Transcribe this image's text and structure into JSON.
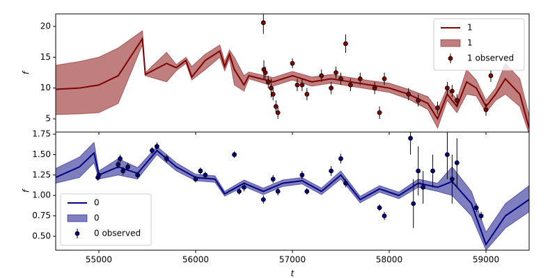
{
  "chart_data": [
    {
      "type": "line",
      "ylabel": "f",
      "legend": "upper right",
      "xlim": [
        54554,
        59446
      ],
      "ylim": [
        2.86,
        22.03
      ],
      "yticks": [
        5,
        10,
        15,
        20
      ],
      "x": [
        54554,
        54800,
        55000,
        55200,
        55450,
        55480,
        55700,
        55800,
        55900,
        55960,
        56100,
        56250,
        56300,
        56350,
        56400,
        56500,
        56550,
        56800,
        57000,
        57200,
        57400,
        57600,
        57800,
        58000,
        58200,
        58400,
        58500,
        58600,
        58700,
        58800,
        58900,
        59000,
        59100,
        59200,
        59350,
        59446
      ],
      "series": [
        {
          "name": "1",
          "kind": "line",
          "color": "#800000",
          "values": [
            9.8,
            10.0,
            10.5,
            12.0,
            18.0,
            12.2,
            14.0,
            13.3,
            14.5,
            11.8,
            14.5,
            16.0,
            13.5,
            15.5,
            13.0,
            10.5,
            12.0,
            11.0,
            12.0,
            11.0,
            11.5,
            11.0,
            10.5,
            10.0,
            9.0,
            7.5,
            5.0,
            9.0,
            7.0,
            11.0,
            10.0,
            7.0,
            9.0,
            11.5,
            9.0,
            3.5
          ]
        },
        {
          "name": "1",
          "kind": "band",
          "color": "#800000",
          "lower": [
            5.7,
            5.8,
            6.0,
            7.5,
            17.0,
            12.0,
            11.0,
            12.8,
            14.0,
            11.3,
            13.0,
            15.0,
            12.8,
            14.8,
            10.5,
            9.5,
            11.5,
            10.3,
            11.3,
            10.3,
            10.8,
            10.3,
            9.8,
            9.3,
            8.2,
            6.5,
            3.5,
            8.0,
            6.0,
            9.0,
            8.7,
            6.0,
            8.0,
            9.0,
            7.0,
            2.5
          ],
          "upper": [
            13.7,
            14.3,
            15.0,
            16.5,
            19.3,
            12.5,
            15.8,
            13.8,
            15.0,
            13.5,
            15.5,
            17.0,
            14.3,
            16.2,
            15.0,
            12.0,
            12.6,
            11.7,
            12.7,
            11.8,
            12.2,
            11.7,
            11.2,
            10.8,
            9.8,
            8.6,
            6.5,
            10.0,
            8.2,
            13.0,
            11.3,
            8.0,
            10.0,
            14.0,
            11.5,
            5.5
          ]
        },
        {
          "name": "1 observed",
          "kind": "points",
          "color": "#800000",
          "x": [
            56700,
            56705,
            56720,
            56750,
            56780,
            56800,
            56830,
            56850,
            57000,
            57050,
            57100,
            57150,
            57300,
            57400,
            57450,
            57500,
            57550,
            57600,
            57700,
            57850,
            57900,
            57950,
            58200,
            58300,
            58500,
            58600,
            58650,
            58700,
            59000,
            59050
          ],
          "values": [
            20.6,
            13.0,
            12.5,
            11.0,
            10.0,
            9.0,
            7.0,
            6.0,
            14.0,
            10.5,
            10.5,
            9.0,
            12.0,
            10.0,
            12.5,
            11.5,
            17.2,
            10.5,
            11.5,
            10.0,
            6.0,
            11.5,
            9.0,
            8.0,
            6.8,
            10.0,
            9.5,
            8.0,
            6.5,
            12.0
          ],
          "errors": [
            1.8,
            1.5,
            1.0,
            1.0,
            1.5,
            1.0,
            1.0,
            1.0,
            0.8,
            1.0,
            1.0,
            1.0,
            1.0,
            1.0,
            1.0,
            1.0,
            1.5,
            1.0,
            1.0,
            1.0,
            1.0,
            1.0,
            1.0,
            1.0,
            1.0,
            1.0,
            1.0,
            1.0,
            1.0,
            1.0
          ]
        }
      ]
    },
    {
      "type": "line",
      "ylabel": "f",
      "xlabel": "t",
      "legend": "lower left",
      "xlim": [
        54554,
        59446
      ],
      "ylim": [
        0.33,
        1.776
      ],
      "xticks": [
        55000,
        56000,
        57000,
        58000,
        59000
      ],
      "yticks": [
        {
          "value": 0.5,
          "label": "0.50"
        },
        0.75,
        {
          "value": 1.0,
          "label": "1.00"
        },
        1.25,
        {
          "value": 1.5,
          "label": "1.50"
        },
        1.75
      ],
      "x": [
        54554,
        54800,
        54950,
        55000,
        55200,
        55400,
        55600,
        55800,
        56000,
        56200,
        56300,
        56500,
        56700,
        56900,
        57100,
        57300,
        57500,
        57700,
        57900,
        58100,
        58300,
        58500,
        58650,
        58850,
        59000,
        59200,
        59446
      ],
      "series": [
        {
          "name": "0",
          "kind": "line",
          "color": "#000080",
          "values": [
            1.22,
            1.35,
            1.52,
            1.25,
            1.35,
            1.27,
            1.55,
            1.35,
            1.22,
            1.2,
            1.02,
            1.15,
            1.05,
            1.15,
            1.18,
            1.05,
            1.25,
            0.95,
            1.08,
            1.0,
            1.15,
            1.1,
            1.17,
            0.9,
            0.4,
            0.75,
            0.95
          ]
        },
        {
          "name": "0",
          "kind": "band",
          "color": "#000080",
          "lower": [
            1.15,
            1.22,
            1.4,
            1.2,
            1.25,
            1.2,
            1.5,
            1.3,
            1.18,
            1.16,
            0.99,
            1.11,
            1.01,
            1.11,
            1.14,
            1.01,
            1.2,
            0.91,
            1.04,
            0.96,
            1.1,
            1.05,
            1.0,
            0.75,
            0.33,
            0.6,
            0.8
          ],
          "upper": [
            1.33,
            1.47,
            1.65,
            1.3,
            1.45,
            1.34,
            1.6,
            1.4,
            1.26,
            1.24,
            1.05,
            1.19,
            1.09,
            1.19,
            1.22,
            1.09,
            1.3,
            0.99,
            1.12,
            1.04,
            1.2,
            1.15,
            1.35,
            1.05,
            0.55,
            0.9,
            1.12
          ]
        },
        {
          "name": "0 observed",
          "kind": "points",
          "color": "#000080",
          "x": [
            54990,
            55000,
            55200,
            55220,
            55250,
            55300,
            55400,
            55550,
            55600,
            55700,
            56000,
            56050,
            56100,
            56400,
            56450,
            56500,
            56700,
            56800,
            56850,
            57100,
            57150,
            57400,
            57500,
            57550,
            57900,
            57950,
            58220,
            58250,
            58300,
            58350,
            58450,
            58600,
            58650,
            58700,
            58900,
            58950
          ],
          "values": [
            1.22,
            1.25,
            1.38,
            1.45,
            1.3,
            1.35,
            1.25,
            1.55,
            1.6,
            1.45,
            1.2,
            1.3,
            1.25,
            1.5,
            1.05,
            1.1,
            0.95,
            1.2,
            1.05,
            1.25,
            1.05,
            1.3,
            1.45,
            1.15,
            0.85,
            0.75,
            1.7,
            0.9,
            1.3,
            1.1,
            1.3,
            1.5,
            1.2,
            1.4,
            0.85,
            0.75
          ],
          "errors": [
            0.04,
            0.04,
            0.05,
            0.05,
            0.05,
            0.05,
            0.04,
            0.04,
            0.05,
            0.05,
            0.04,
            0.04,
            0.04,
            0.04,
            0.04,
            0.05,
            0.05,
            0.05,
            0.05,
            0.05,
            0.04,
            0.06,
            0.06,
            0.05,
            0.04,
            0.05,
            0.2,
            0.3,
            0.3,
            0.2,
            0.2,
            0.3,
            0.3,
            0.3,
            0.05,
            0.05
          ]
        }
      ]
    }
  ]
}
